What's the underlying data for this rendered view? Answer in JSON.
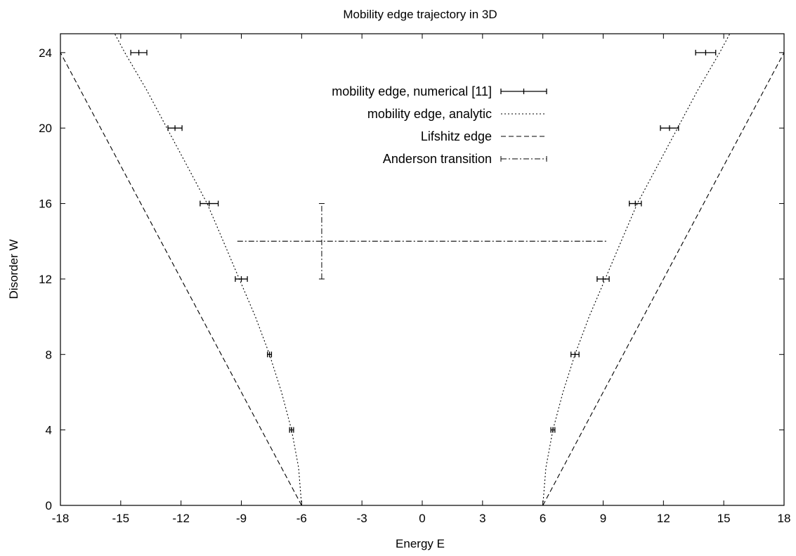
{
  "chart_data": {
    "type": "line",
    "title": "Mobility edge trajectory in 3D",
    "xlabel": "Energy E",
    "ylabel": "Disorder W",
    "xlim": [
      -18,
      18
    ],
    "ylim": [
      0,
      25
    ],
    "xticks": [
      -18,
      -15,
      -12,
      -9,
      -6,
      -3,
      0,
      3,
      6,
      9,
      12,
      15,
      18
    ],
    "yticks": [
      0,
      4,
      8,
      12,
      16,
      20,
      24
    ],
    "grid": false,
    "legend_position": "top-center",
    "series": [
      {
        "name": "mobility edge, numerical [11]",
        "style": "errorbar-points",
        "points": [
          {
            "x": -14.1,
            "y": 24,
            "xerr": 0.4
          },
          {
            "x": -12.3,
            "y": 20,
            "xerr": 0.35
          },
          {
            "x": -10.6,
            "y": 16,
            "xerr": 0.45
          },
          {
            "x": -9.0,
            "y": 12,
            "xerr": 0.3
          },
          {
            "x": -7.6,
            "y": 8,
            "xerr": 0.1
          },
          {
            "x": -6.5,
            "y": 4,
            "xerr": 0.1
          },
          {
            "x": 6.5,
            "y": 4,
            "xerr": 0.1
          },
          {
            "x": 7.6,
            "y": 8,
            "xerr": 0.2
          },
          {
            "x": 9.0,
            "y": 12,
            "xerr": 0.3
          },
          {
            "x": 10.6,
            "y": 16,
            "xerr": 0.3
          },
          {
            "x": 12.3,
            "y": 20,
            "xerr": 0.45
          },
          {
            "x": 14.1,
            "y": 24,
            "xerr": 0.5
          }
        ]
      },
      {
        "name": "mobility edge, analytic",
        "style": "dotted",
        "segments": [
          [
            [
              -6,
              0
            ],
            [
              -6.15,
              2
            ],
            [
              -6.5,
              4
            ],
            [
              -7,
              6
            ],
            [
              -7.6,
              8
            ],
            [
              -8.3,
              10
            ],
            [
              -9.1,
              12
            ],
            [
              -9.9,
              14
            ],
            [
              -10.7,
              16
            ],
            [
              -11.7,
              18
            ],
            [
              -12.7,
              20
            ],
            [
              -13.7,
              22
            ],
            [
              -14.8,
              24
            ],
            [
              -15.3,
              25
            ]
          ],
          [
            [
              6,
              0
            ],
            [
              6.15,
              2
            ],
            [
              6.5,
              4
            ],
            [
              7,
              6
            ],
            [
              7.6,
              8
            ],
            [
              8.3,
              10
            ],
            [
              9.1,
              12
            ],
            [
              9.9,
              14
            ],
            [
              10.7,
              16
            ],
            [
              11.7,
              18
            ],
            [
              12.7,
              20
            ],
            [
              13.7,
              22
            ],
            [
              14.8,
              24
            ],
            [
              15.3,
              25
            ]
          ]
        ]
      },
      {
        "name": "Lifshitz edge",
        "style": "dashed",
        "segments": [
          [
            [
              -6,
              0
            ],
            [
              -18,
              24
            ]
          ],
          [
            [
              6,
              0
            ],
            [
              18,
              24
            ]
          ]
        ]
      },
      {
        "name": "Anderson transition",
        "style": "dashdot",
        "segments": [
          [
            [
              -9.2,
              14
            ],
            [
              9.2,
              14
            ]
          ]
        ],
        "errorbar": {
          "x": -5,
          "y": 14,
          "yerr": 2
        }
      }
    ]
  }
}
